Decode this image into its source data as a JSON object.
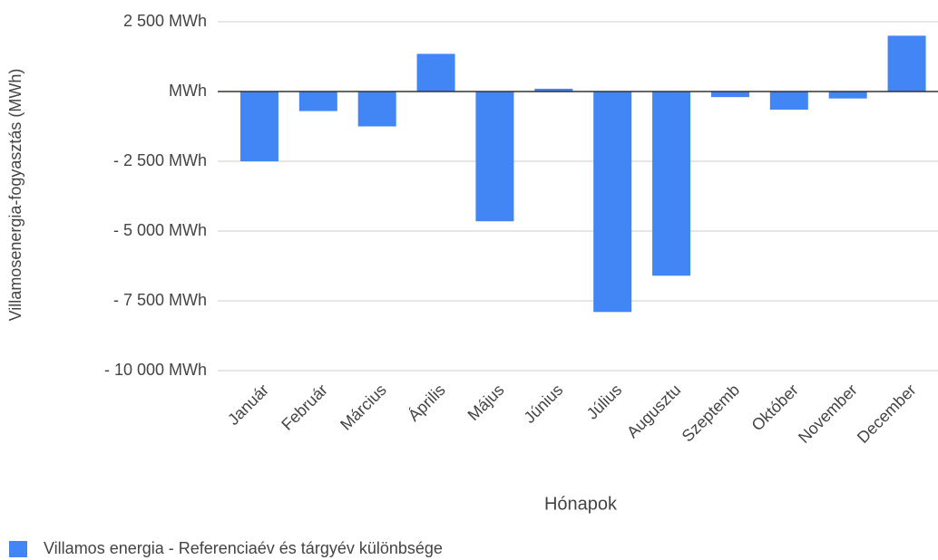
{
  "chart_data": {
    "type": "bar",
    "y_label": "Villamosenergia-fogyasztás (MWh)",
    "x_label": "Hónapok",
    "categories": [
      "Január",
      "Február",
      "Március",
      "Április",
      "Május",
      "Június",
      "Július",
      "Augusztu",
      "Szeptemb",
      "Október",
      "November",
      "December"
    ],
    "series": [
      {
        "name": "Villamos energia - Referenciaév és tárgyév különbsége",
        "color": "#4285f4",
        "values": [
          -2500,
          -700,
          -1250,
          1350,
          -4650,
          100,
          -7900,
          -6600,
          -200,
          -650,
          -250,
          2000
        ]
      }
    ],
    "ylim": [
      -10000,
      2500
    ],
    "yticks": [
      {
        "value": 2500,
        "label": "2 500  MWh"
      },
      {
        "value": 0,
        "label": "MWh"
      },
      {
        "value": -2500,
        "label": "- 2 500  MWh"
      },
      {
        "value": -5000,
        "label": "- 5 000  MWh"
      },
      {
        "value": -7500,
        "label": "- 7 500  MWh"
      },
      {
        "value": -10000,
        "label": "- 10 000  MWh"
      }
    ],
    "grid": true
  }
}
